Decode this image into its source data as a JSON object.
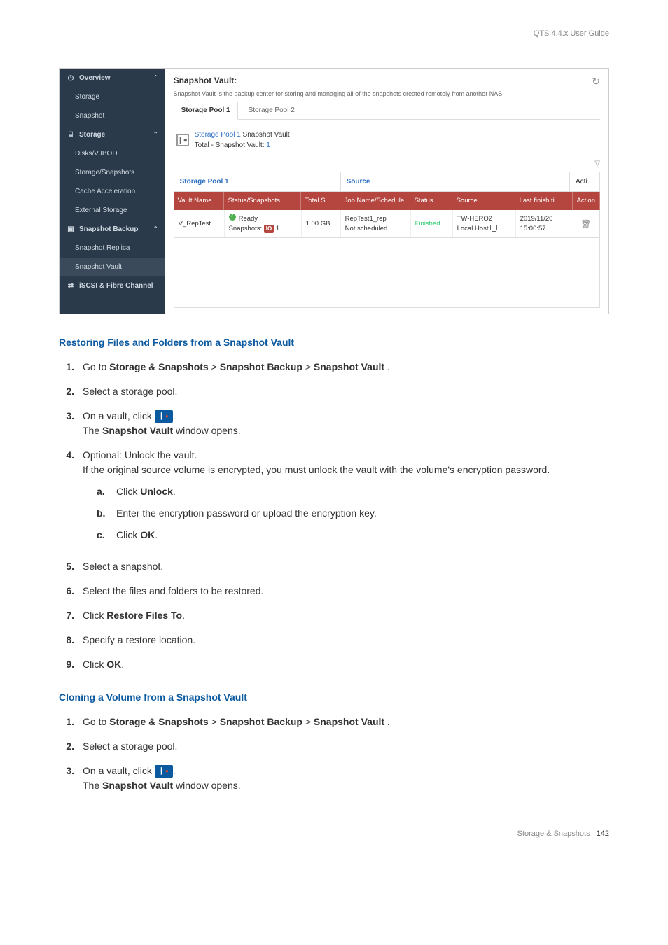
{
  "header": {
    "guide": "QTS 4.4.x User Guide"
  },
  "screenshot": {
    "sidebar": {
      "items": [
        {
          "label": "Overview",
          "icon": "◷",
          "top": true,
          "chev": "⌃"
        },
        {
          "label": "Storage"
        },
        {
          "label": "Snapshot"
        },
        {
          "label": "Storage",
          "icon": "⌸",
          "top": true,
          "chev": "⌃"
        },
        {
          "label": "Disks/VJBOD"
        },
        {
          "label": "Storage/Snapshots"
        },
        {
          "label": "Cache Acceleration"
        },
        {
          "label": "External Storage"
        },
        {
          "label": "Snapshot Backup",
          "icon": "▣",
          "top": true,
          "chev": "⌃"
        },
        {
          "label": "Snapshot Replica"
        },
        {
          "label": "Snapshot Vault",
          "selected": true
        },
        {
          "label": "iSCSI & Fibre Channel",
          "icon": "⇄",
          "top": true
        }
      ]
    },
    "main": {
      "title": "Snapshot Vault:",
      "subtitle": "Snapshot Vault is the backup center for storing and managing all of the snapshots created remotely from another NAS.",
      "tabs": [
        {
          "label": "Storage Pool 1",
          "active": true
        },
        {
          "label": "Storage Pool 2",
          "active": false
        }
      ],
      "summary": {
        "line1a": "Storage Pool 1",
        "line1b": " Snapshot Vault",
        "line2a": "Total - Snapshot Vault: ",
        "line2b": "1"
      },
      "top_header": {
        "pool": "Storage Pool 1",
        "source": "Source",
        "acti": "Acti..."
      },
      "red_header": {
        "vault": "Vault Name",
        "status": "Status/Snapshots",
        "total": "Total S...",
        "job": "Job Name/Schedule",
        "stat": "Status",
        "source": "Source",
        "finish": "Last finish ti...",
        "action": "Action"
      },
      "row": {
        "vault": "V_RepTest...",
        "status1": "Ready",
        "status2a": "Snapshots: ",
        "status2b": "1",
        "total": "1.00 GB",
        "job1": "RepTest1_rep",
        "job2": "Not scheduled",
        "stat": "Finished",
        "source1": "TW-HERO2",
        "source2": "Local Host",
        "finish1": "2019/11/20",
        "finish2": "15:00:57"
      }
    }
  },
  "sec1": {
    "heading": "Restoring Files and Folders from a Snapshot Vault",
    "steps": {
      "s1": {
        "pre": "Go to ",
        "a": "Storage & Snapshots",
        "gt1": " > ",
        "b": "Snapshot Backup",
        "gt2": " > ",
        "c": "Snapshot Vault",
        "post": " ."
      },
      "s2": "Select a storage pool.",
      "s3a": "On a vault, click ",
      "s3b": ".",
      "s3c": "The ",
      "s3d": "Snapshot Vault",
      "s3e": " window opens.",
      "s4a": "Optional: Unlock the vault.",
      "s4b": "If the original source volume is encrypted, you must unlock the vault with the volume's encryption password.",
      "sa": {
        "pre": "Click ",
        "bold": "Unlock",
        "post": "."
      },
      "sb": "Enter the encryption password or upload the encryption key.",
      "sc": {
        "pre": "Click ",
        "bold": "OK",
        "post": "."
      },
      "s5": "Select a snapshot.",
      "s6": "Select the files and folders to be restored.",
      "s7": {
        "pre": "Click ",
        "bold": "Restore Files To",
        "post": "."
      },
      "s8": "Specify a restore location.",
      "s9": {
        "pre": "Click ",
        "bold": "OK",
        "post": "."
      }
    }
  },
  "sec2": {
    "heading": "Cloning a Volume from a Snapshot Vault",
    "steps": {
      "s1": {
        "pre": "Go to ",
        "a": "Storage & Snapshots",
        "gt1": " > ",
        "b": "Snapshot Backup",
        "gt2": " > ",
        "c": "Snapshot Vault",
        "post": " ."
      },
      "s2": "Select a storage pool.",
      "s3a": "On a vault, click ",
      "s3b": ".",
      "s3c": "The ",
      "s3d": "Snapshot Vault",
      "s3e": " window opens."
    }
  },
  "footer": {
    "text": "Storage & Snapshots",
    "page": "142"
  }
}
